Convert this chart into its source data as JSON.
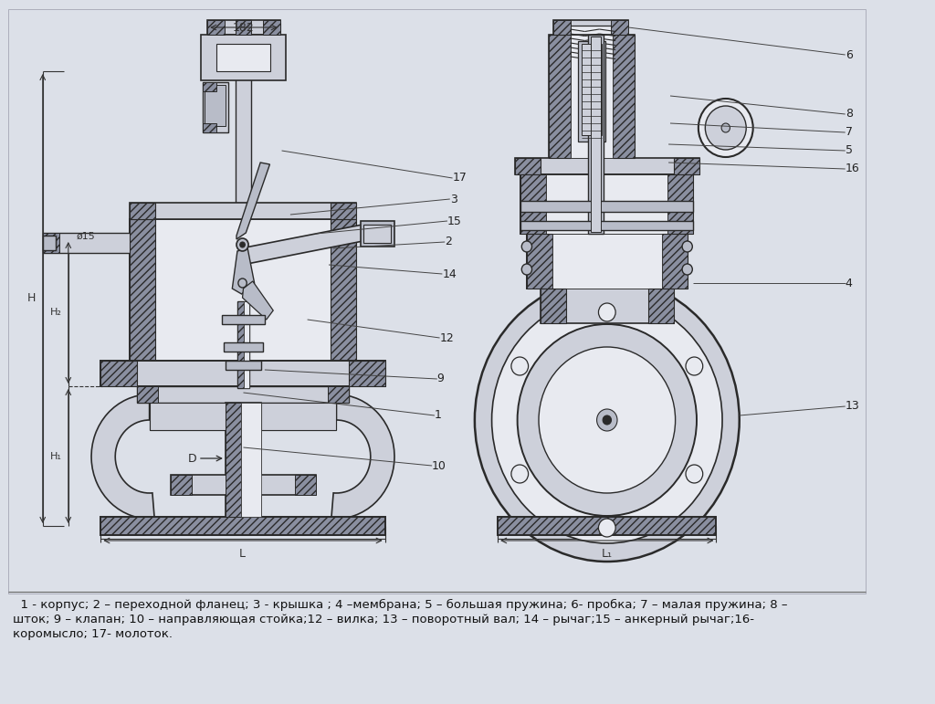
{
  "bg_color": "#dce0e8",
  "paper_color": "#dce0e8",
  "lc": "#2a2a2a",
  "hatch_fc": "#8a8fa0",
  "light_fc": "#cdd0da",
  "mid_fc": "#b8bcc8",
  "dark_fc": "#9298a8",
  "white_fc": "#e8eaf0",
  "legend_text_line1": "  1 - корпус; 2 – переходной фланец; 3 - крышка ; 4 –мембрана; 5 – большая пружина; 6- пробка; 7 – малая пружина; 8 –",
  "legend_text_line2": "шток; 9 – клапан; 10 – направляющая стойка;12 – вилка; 13 – поворотный вал; 14 – рычаг;15 – анкерный рычаг;16-",
  "legend_text_line3": "коромысло; 17- молоток.",
  "label_fontsize": 9,
  "legend_fontsize": 9.5
}
